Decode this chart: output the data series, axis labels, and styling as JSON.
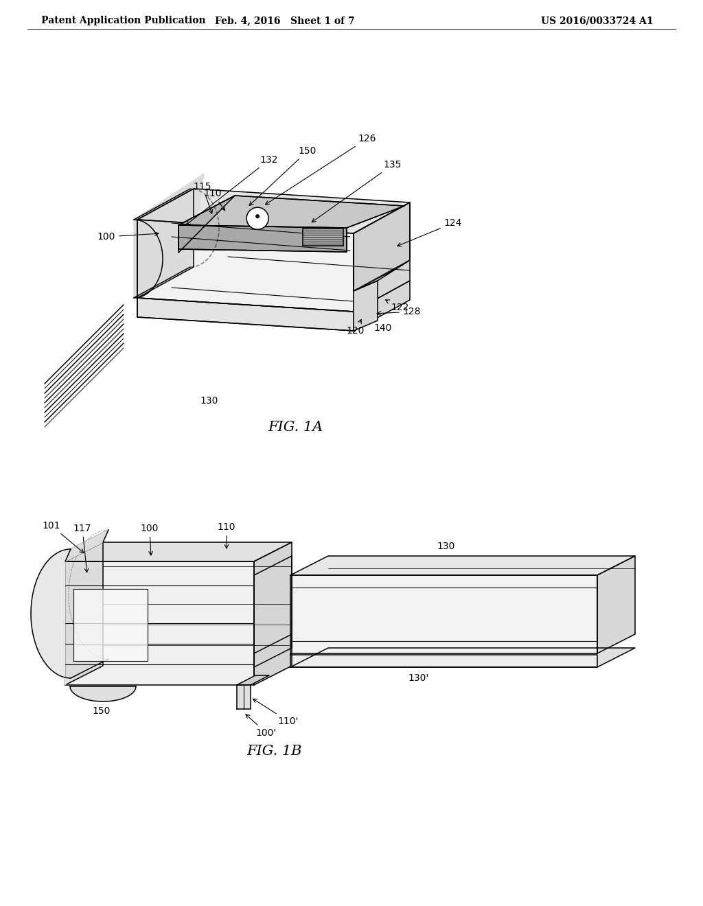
{
  "background_color": "#ffffff",
  "header_left": "Patent Application Publication",
  "header_center": "Feb. 4, 2016   Sheet 1 of 7",
  "header_right": "US 2016/0033724 A1",
  "header_font_size": 10,
  "fig1a_caption": "FIG. 1A",
  "fig1b_caption": "FIG. 1B",
  "caption_font_size": 15,
  "label_font_size": 10,
  "lw": 1.1,
  "line_color": "#000000",
  "fig1a": {
    "labels": {
      "100": [
        155,
        970,
        230,
        985
      ],
      "110": [
        318,
        1015,
        356,
        1040
      ],
      "115": [
        305,
        1048,
        340,
        1062
      ],
      "120": [
        528,
        838,
        525,
        852
      ],
      "122": [
        598,
        870,
        648,
        905
      ],
      "124": [
        660,
        1000,
        698,
        1018
      ],
      "126": [
        516,
        1118,
        530,
        1108
      ],
      "128": [
        605,
        866,
        645,
        870
      ],
      "130": [
        295,
        736,
        0,
        0
      ],
      "132": [
        388,
        1087,
        420,
        1068
      ],
      "135": [
        568,
        1080,
        590,
        1070
      ],
      "140": [
        558,
        840,
        0,
        0
      ],
      "150": [
        438,
        1100,
        468,
        1082
      ]
    }
  },
  "fig1b": {
    "labels": {
      "101": [
        75,
        935,
        115,
        918
      ],
      "100": [
        215,
        930,
        245,
        920
      ],
      "110": [
        310,
        930,
        330,
        920
      ],
      "117": [
        120,
        912,
        148,
        900
      ],
      "130": [
        650,
        940,
        0,
        0
      ],
      "130p": [
        615,
        810,
        0,
        0
      ],
      "110p": [
        378,
        798,
        385,
        808
      ],
      "100p": [
        355,
        790,
        365,
        800
      ],
      "150": [
        145,
        790,
        0,
        0
      ]
    }
  }
}
